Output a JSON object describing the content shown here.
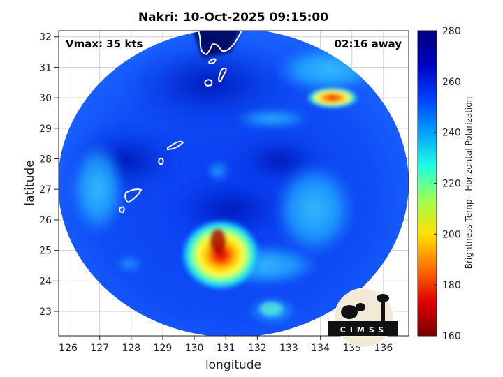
{
  "title": "Nakri: 10-Oct-2025 09:15:00",
  "vmax_label": "Vmax: 35 kts",
  "away_label": "02:16 away",
  "logo_text": "CIMSS",
  "chart_data": {
    "type": "heatmap",
    "xlabel": "longitude",
    "ylabel": "latitude",
    "xlim": [
      125.7,
      136.8
    ],
    "ylim": [
      22.2,
      32.2
    ],
    "xticks": [
      "126",
      "127",
      "128",
      "129",
      "130",
      "131",
      "132",
      "133",
      "134",
      "135",
      "136"
    ],
    "yticks": [
      "23",
      "24",
      "25",
      "26",
      "27",
      "28",
      "29",
      "30",
      "31",
      "32"
    ],
    "grid": true,
    "colorbar": {
      "label": "Brightness Temp - Horizontal Polarization",
      "min": 160,
      "max": 280,
      "ticks": [
        "280",
        "260",
        "240",
        "220",
        "200",
        "180",
        "160"
      ],
      "colormap": [
        "#7a0000",
        "#e00000",
        "#ff7000",
        "#ffe000",
        "#a0ff50",
        "#20ffe0",
        "#00a0ff",
        "#0040ff",
        "#0000c0",
        "#000080"
      ]
    },
    "swath": {
      "center_lon": 131.3,
      "center_lat": 26.9,
      "radius_deg_lon": 5.65,
      "radius_deg_lat": 5.0
    },
    "cold_features": [
      {
        "name": "main convection",
        "lon": 130.8,
        "lat": 24.9,
        "min_tb": 175
      },
      {
        "name": "northeast cell",
        "lon": 134.7,
        "lat": 29.8,
        "min_tb": 185
      },
      {
        "name": "southeast cell",
        "lon": 132.7,
        "lat": 22.9,
        "min_tb": 240
      }
    ]
  }
}
